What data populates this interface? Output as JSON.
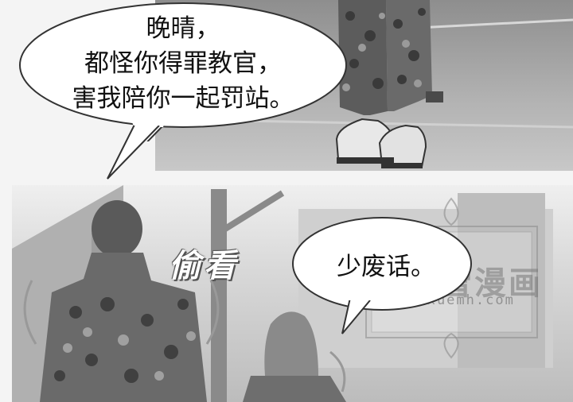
{
  "panel1": {
    "speech": {
      "line1": "晚晴，",
      "line2": "都怪你得罪教官，",
      "line3": "害我陪你一起罚站。"
    }
  },
  "panel2": {
    "sound_effect": "偷看",
    "speech": "少废话。"
  },
  "watermark": {
    "title": "飞雪漫画",
    "url": "feixuemh.com"
  }
}
